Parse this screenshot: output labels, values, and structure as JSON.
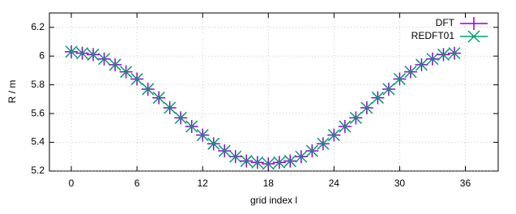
{
  "chart_data": {
    "type": "scatter",
    "xlabel": "grid index l",
    "ylabel": "R / m",
    "x": [
      0,
      1,
      2,
      3,
      4,
      5,
      6,
      7,
      8,
      9,
      10,
      11,
      12,
      13,
      14,
      15,
      16,
      17,
      18,
      19,
      20,
      21,
      22,
      23,
      24,
      25,
      26,
      27,
      28,
      29,
      30,
      31,
      32,
      33,
      34,
      35
    ],
    "series": [
      {
        "name": "DFT",
        "color": "#9400d3",
        "marker": "plus",
        "values": [
          6.03,
          6.02,
          6.01,
          5.98,
          5.94,
          5.89,
          5.84,
          5.77,
          5.71,
          5.64,
          5.57,
          5.51,
          5.45,
          5.39,
          5.34,
          5.3,
          5.27,
          5.26,
          5.25,
          5.26,
          5.27,
          5.3,
          5.34,
          5.39,
          5.45,
          5.51,
          5.57,
          5.64,
          5.71,
          5.77,
          5.84,
          5.89,
          5.94,
          5.98,
          6.01,
          6.02
        ]
      },
      {
        "name": "REDFT01",
        "color": "#009e73",
        "marker": "cross",
        "values": [
          6.03,
          6.02,
          6.01,
          5.98,
          5.94,
          5.89,
          5.84,
          5.77,
          5.71,
          5.64,
          5.57,
          5.51,
          5.45,
          5.39,
          5.34,
          5.3,
          5.27,
          5.26,
          5.25,
          5.26,
          5.27,
          5.3,
          5.34,
          5.39,
          5.45,
          5.51,
          5.57,
          5.64,
          5.71,
          5.77,
          5.84,
          5.89,
          5.94,
          5.98,
          6.01,
          6.02
        ]
      }
    ],
    "xlim": [
      -2,
      39
    ],
    "xticks": [
      0,
      6,
      12,
      18,
      24,
      30,
      36
    ],
    "ylim": [
      5.2,
      6.3
    ],
    "yticks": [
      5.2,
      5.4,
      5.6,
      5.8,
      6,
      6.2
    ],
    "grid": true,
    "legend": "top-right"
  }
}
